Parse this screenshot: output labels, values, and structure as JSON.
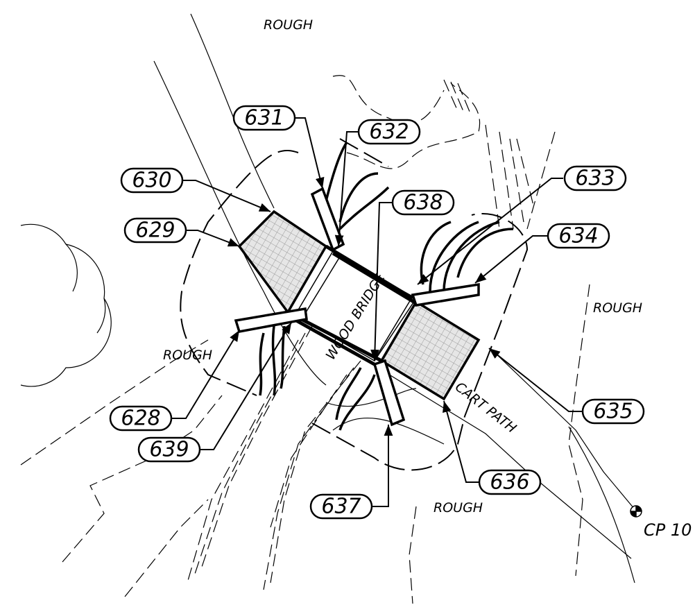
{
  "areas": [
    {
      "label": "ROUGH"
    },
    {
      "label": "ROUGH"
    },
    {
      "label": "ROUGH"
    },
    {
      "label": "ROUGH"
    }
  ],
  "features": {
    "bridge": "WOOD BRIDGE",
    "path": "CART PATH",
    "control_point": "CP 10"
  },
  "callouts": [
    {
      "label": "628"
    },
    {
      "label": "629"
    },
    {
      "label": "630"
    },
    {
      "label": "631"
    },
    {
      "label": "632"
    },
    {
      "label": "633"
    },
    {
      "label": "634"
    },
    {
      "label": "635"
    },
    {
      "label": "636"
    },
    {
      "label": "637"
    },
    {
      "label": "638"
    },
    {
      "label": "639"
    }
  ]
}
